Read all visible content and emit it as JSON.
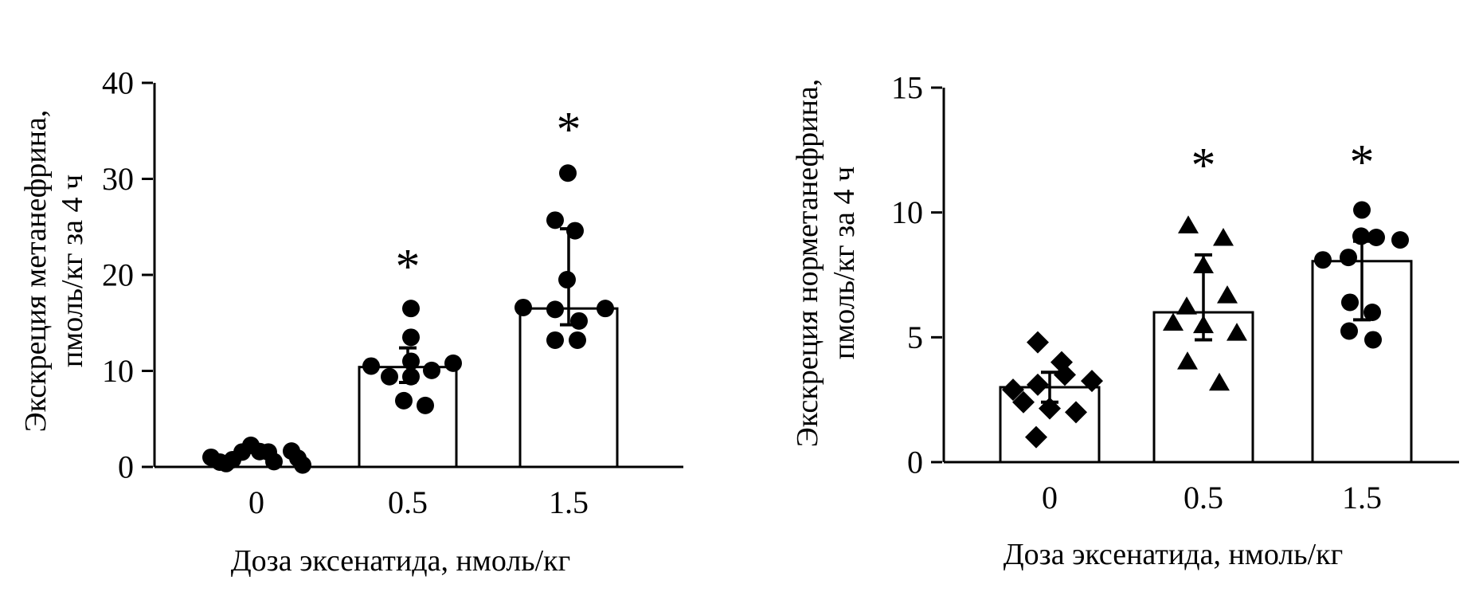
{
  "figure": {
    "background": "#ffffff",
    "foreground": "#000000",
    "bar_fill": "#ffffff",
    "bar_stroke": "#000000"
  },
  "chart_data": [
    {
      "type": "bar",
      "panel": "metanephrine",
      "ylabel_lines": [
        "Экскреция метанефрина,",
        "пмоль/кг за 4 ч"
      ],
      "xlabel": "Доза эксенатида, нмоль/кг",
      "categories": [
        "0",
        "0.5",
        "1.5"
      ],
      "ylim": [
        0,
        40
      ],
      "yticks": [
        "0",
        "10",
        "20",
        "30",
        "40"
      ],
      "legend": "none",
      "grid": false,
      "significance_symbol": "*",
      "groups": [
        {
          "category": "0",
          "marker": "circle",
          "bar_mean": null,
          "whisker_low": null,
          "whisker_high": null,
          "significant": false,
          "points": [
            1.0,
            0.5,
            0.35,
            0.75,
            1.55,
            2.25,
            1.6,
            1.55,
            0.55,
            1.65,
            0.9,
            0.2
          ]
        },
        {
          "category": "0.5",
          "marker": "circle",
          "bar_mean": 10.4,
          "whisker_low": 8.8,
          "whisker_high": 12.4,
          "significant": true,
          "points": [
            16.5,
            13.5,
            11.0,
            10.8,
            10.5,
            10.05,
            9.4,
            9.4,
            6.9,
            6.4
          ]
        },
        {
          "category": "1.5",
          "marker": "circle",
          "bar_mean": 16.5,
          "whisker_low": 14.8,
          "whisker_high": 24.8,
          "significant": true,
          "points": [
            30.6,
            25.7,
            24.6,
            19.5,
            16.6,
            16.5,
            16.4,
            15.2,
            13.2,
            13.2
          ]
        }
      ]
    },
    {
      "type": "bar",
      "panel": "normetanephrine",
      "ylabel_lines": [
        "Экскреция норметанефрина,",
        "пмоль/кг за 4 ч"
      ],
      "xlabel": "Доза эксенатида, нмоль/кг",
      "categories": [
        "0",
        "0.5",
        "1.5"
      ],
      "ylim": [
        0,
        15
      ],
      "yticks": [
        "0",
        "5",
        "10",
        "15"
      ],
      "legend": "none",
      "grid": false,
      "significance_symbol": "*",
      "groups": [
        {
          "category": "0",
          "marker": "diamond",
          "bar_mean": 3.0,
          "whisker_low": 2.4,
          "whisker_high": 3.6,
          "significant": false,
          "points": [
            4.8,
            4.0,
            3.5,
            3.25,
            3.1,
            2.9,
            2.4,
            2.15,
            2.0,
            1.0
          ]
        },
        {
          "category": "0.5",
          "marker": "triangle",
          "bar_mean": 6.0,
          "whisker_low": 4.9,
          "whisker_high": 8.3,
          "significant": true,
          "points": [
            9.5,
            9.0,
            7.9,
            6.7,
            6.25,
            5.6,
            5.5,
            5.2,
            4.05,
            3.2
          ]
        },
        {
          "category": "1.5",
          "marker": "circle",
          "bar_mean": 8.05,
          "whisker_low": 5.7,
          "whisker_high": 8.85,
          "significant": true,
          "points": [
            10.1,
            9.05,
            9.0,
            8.9,
            8.2,
            8.1,
            6.4,
            6.0,
            5.25,
            4.9
          ]
        }
      ]
    }
  ]
}
